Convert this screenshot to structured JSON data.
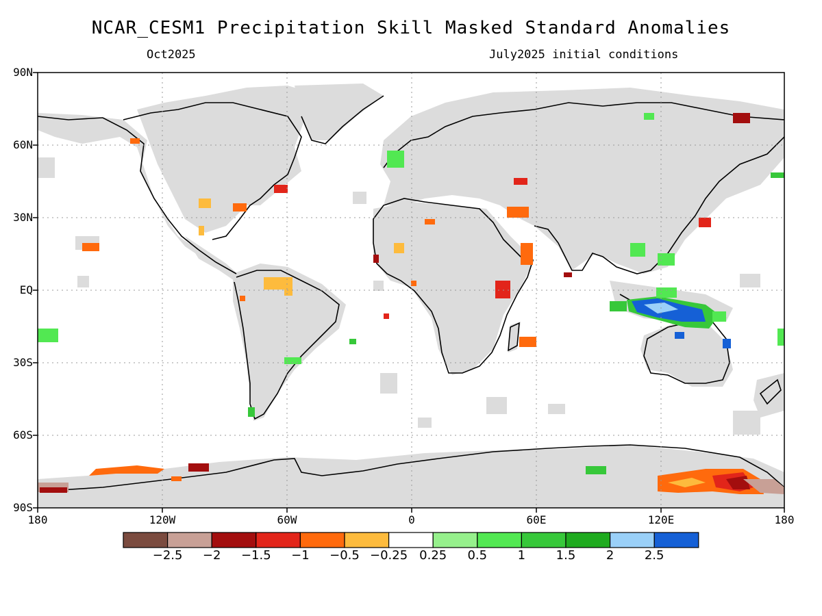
{
  "title": "NCAR_CESM1 Precipitation Skill Masked Standard Anomalies",
  "subtitle_left": "Oct2025",
  "subtitle_right": "July2025 initial conditions",
  "lat_labels": [
    "90N",
    "60N",
    "30N",
    "EQ",
    "30S",
    "60S",
    "90S"
  ],
  "lon_labels": [
    "180",
    "120W",
    "60W",
    "0",
    "60E",
    "120E",
    "180"
  ],
  "colorbar": {
    "colors": [
      "#7b4b3f",
      "#c8a096",
      "#a30e0e",
      "#e2251a",
      "#ff6a0d",
      "#fdbb3d",
      "#ffffff",
      "#96f08c",
      "#52e852",
      "#37c83a",
      "#1fab1f",
      "#9ad0f8",
      "#1560d6"
    ],
    "labels": [
      "−2.5",
      "−2",
      "−1.5",
      "−1",
      "−0.5",
      "−0.25",
      "0.25",
      "0.5",
      "1",
      "1.5",
      "2",
      "2.5"
    ]
  },
  "colors": {
    "land_mask": "#dcdcdc",
    "coast": "#000000"
  }
}
